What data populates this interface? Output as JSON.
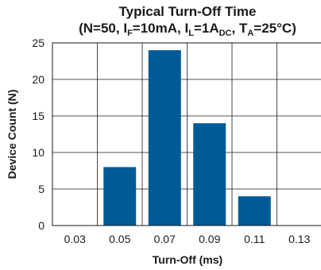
{
  "chart_data": {
    "type": "bar",
    "title_line1": "Typical Turn-Off Time",
    "title_line2_parts": [
      {
        "text": "(N=50, I",
        "sub": false
      },
      {
        "text": "F",
        "sub": true
      },
      {
        "text": "=10mA, I",
        "sub": false
      },
      {
        "text": "L",
        "sub": true
      },
      {
        "text": "=1A",
        "sub": false
      },
      {
        "text": "DC",
        "sub": true
      },
      {
        "text": ", T",
        "sub": false
      },
      {
        "text": "A",
        "sub": true
      },
      {
        "text": "=25°C)",
        "sub": false
      }
    ],
    "xlabel": "Turn-Off (ms)",
    "ylabel": "Device Count (N)",
    "categories": [
      "0.03",
      "0.05",
      "0.07",
      "0.09",
      "0.11",
      "0.13"
    ],
    "values": [
      0,
      8,
      24,
      14,
      4,
      0
    ],
    "ylim": [
      0,
      25
    ],
    "yticks": [
      "0",
      "5",
      "10",
      "15",
      "20",
      "25"
    ],
    "grid": true,
    "bar_color": "#005a96"
  }
}
